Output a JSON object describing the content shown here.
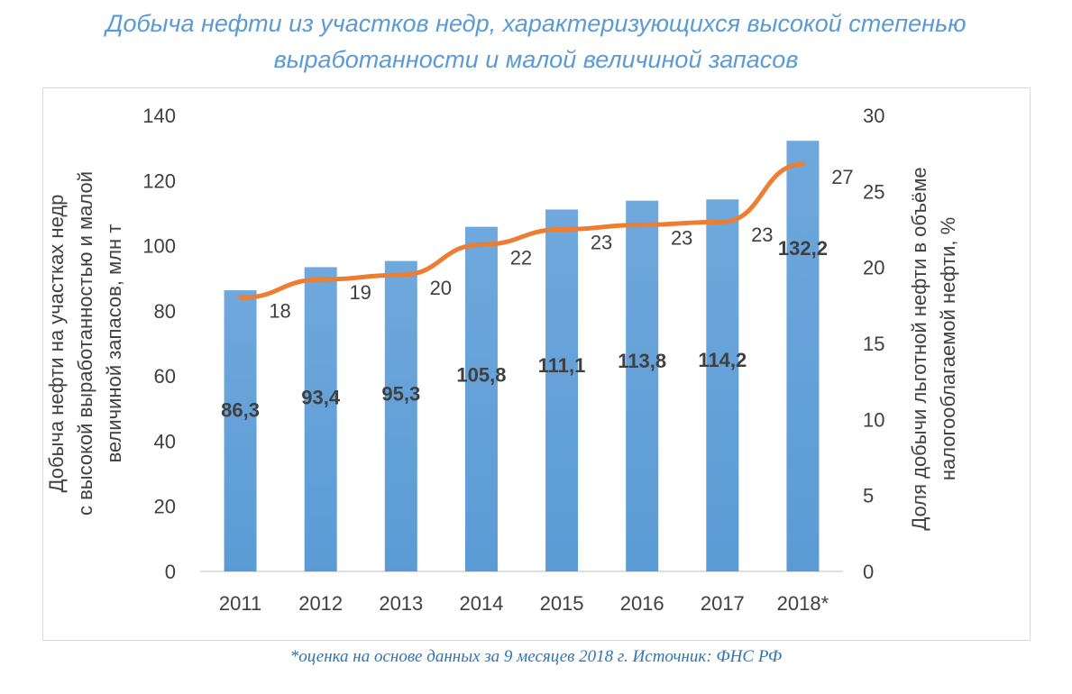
{
  "title": {
    "line1": "Добыча нефти из участков недр, характеризующихся высокой степенью",
    "line2": "выработанности и малой величиной запасов"
  },
  "footnote": "*оценка на основе данных за 9 месяцев 2018 г. Источник: ФНС РФ",
  "colors": {
    "bar": "#5b9bd5",
    "line": "#ed7d31",
    "title": "#5b9bd5",
    "text": "#404040"
  },
  "chart_data": {
    "type": "bar",
    "categories": [
      "2011",
      "2012",
      "2013",
      "2014",
      "2015",
      "2016",
      "2017",
      "2018*"
    ],
    "ylabel_left": {
      "line1": "Добыча нефти на участках недр",
      "line2": "с высокой  выработанностью и малой",
      "line3": "величиной запасов,  млн т"
    },
    "ylabel_right": {
      "line1": "Доля добычи льготной нефти в объёме",
      "line2": "налогооблагаемой нефти, %"
    },
    "ylim_left": [
      0,
      140
    ],
    "yticks_left": [
      0,
      20,
      40,
      60,
      80,
      100,
      120,
      140
    ],
    "ylim_right": [
      0,
      30
    ],
    "yticks_right": [
      0,
      5,
      10,
      15,
      20,
      25,
      30
    ],
    "grid": false,
    "series": [
      {
        "type": "bar",
        "axis": "left",
        "values": [
          86.3,
          93.4,
          95.3,
          105.8,
          111.1,
          113.8,
          114.2,
          132.2
        ],
        "labels": [
          "86,3",
          "93,4",
          "95,3",
          "105,8",
          "111,1",
          "113,8",
          "114,2",
          "132,2"
        ]
      },
      {
        "type": "line",
        "axis": "right",
        "values": [
          18,
          19.2,
          19.5,
          21.5,
          22.5,
          22.8,
          23,
          26.8
        ],
        "labels": [
          "18",
          "19",
          "20",
          "22",
          "23",
          "23",
          "23",
          "27"
        ]
      }
    ]
  }
}
